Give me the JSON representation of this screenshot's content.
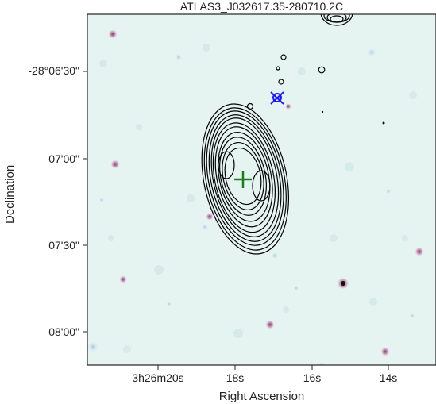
{
  "chart_data": {
    "type": "contour_image",
    "title": "ATLAS3_J032617.35-280710.2C",
    "xlabel": "Right Ascension",
    "ylabel": "Declination",
    "x_ticks": [
      "3h26m20s",
      "18s",
      "16s",
      "14s"
    ],
    "y_ticks": [
      "-28°06'30\"",
      "07'00\"",
      "07'30\"",
      "08'00\""
    ],
    "background_image": "infrared-greyscale-field",
    "contour_color": "#000000",
    "markers": [
      {
        "symbol": "plus",
        "color": "#1a7f1a"
      },
      {
        "symbol": "circle-x",
        "color": "#1a1aff"
      }
    ]
  }
}
